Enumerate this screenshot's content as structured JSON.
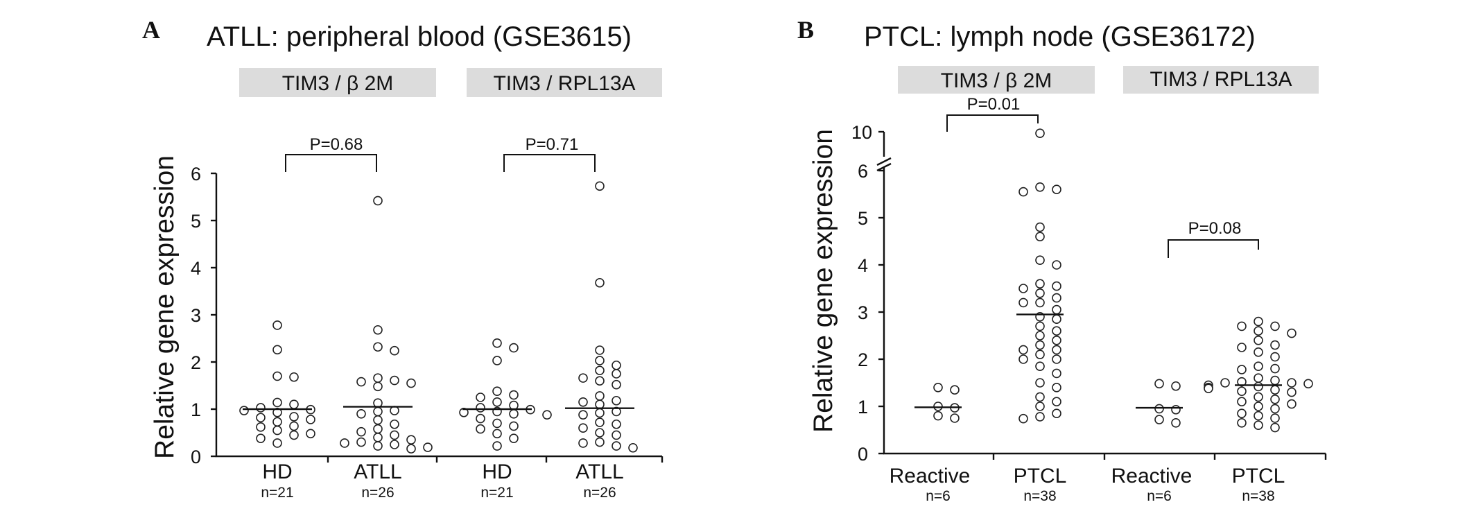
{
  "chart_data": [
    {
      "type": "scatter",
      "panel_label": "A",
      "title": "ATLL: peripheral blood (GSE3615)",
      "ylabel": "Relative gene expression",
      "ylim": [
        0,
        6
      ],
      "yticks": [
        "0",
        "1",
        "2",
        "3",
        "4",
        "5",
        "6"
      ],
      "grid": false,
      "groups": [
        {
          "header": "TIM3 / β 2M",
          "p_value": "P=0.68",
          "categories": [
            {
              "label": "HD",
              "n": "n=21",
              "mean": 1.0,
              "values": [
                2.78,
                2.26,
                1.7,
                1.68,
                1.14,
                1.1,
                1.03,
                0.99,
                0.97,
                0.93,
                0.84,
                0.82,
                0.78,
                0.73,
                0.64,
                0.62,
                0.55,
                0.48,
                0.45,
                0.38,
                0.28
              ]
            },
            {
              "label": "ATLL",
              "n": "n=26",
              "mean": 1.05,
              "values": [
                5.42,
                2.68,
                2.32,
                2.24,
                1.66,
                1.61,
                1.58,
                1.55,
                1.48,
                1.13,
                0.97,
                0.95,
                0.9,
                0.77,
                0.68,
                0.58,
                0.52,
                0.45,
                0.4,
                0.35,
                0.3,
                0.28,
                0.25,
                0.22,
                0.19,
                0.16
              ]
            }
          ]
        },
        {
          "header": "TIM3 / RPL13A",
          "p_value": "P=0.71",
          "categories": [
            {
              "label": "HD",
              "n": "n=21",
              "mean": 1.0,
              "values": [
                2.4,
                2.3,
                2.03,
                1.38,
                1.3,
                1.25,
                1.15,
                1.08,
                1.03,
                0.99,
                0.95,
                0.93,
                0.9,
                0.88,
                0.8,
                0.7,
                0.64,
                0.58,
                0.48,
                0.38,
                0.22
              ]
            },
            {
              "label": "ATLL",
              "n": "n=26",
              "mean": 1.02,
              "values": [
                5.73,
                3.68,
                2.25,
                2.03,
                1.93,
                1.82,
                1.75,
                1.66,
                1.6,
                1.52,
                1.28,
                1.18,
                1.15,
                1.1,
                0.95,
                0.92,
                0.88,
                0.72,
                0.68,
                0.6,
                0.5,
                0.45,
                0.3,
                0.28,
                0.22,
                0.18
              ]
            }
          ]
        }
      ]
    },
    {
      "type": "scatter",
      "panel_label": "B",
      "title": "PTCL: lymph node (GSE36172)",
      "ylabel": "Relative gene expression",
      "ylim": [
        0,
        10
      ],
      "yticks": [
        "0",
        "1",
        "2",
        "3",
        "4",
        "5",
        "6",
        "10"
      ],
      "axis_break": "between 6 and 10",
      "grid": false,
      "groups": [
        {
          "header": "TIM3 / β 2M",
          "p_value": "P=0.01",
          "categories": [
            {
              "label": "Reactive",
              "n": "n=6",
              "mean": 0.98,
              "values": [
                1.4,
                1.35,
                1.0,
                0.97,
                0.8,
                0.75
              ]
            },
            {
              "label": "PTCL",
              "n": "n=38",
              "mean": 2.95,
              "values": [
                9.8,
                5.65,
                5.6,
                5.55,
                4.8,
                4.6,
                4.1,
                4.0,
                3.6,
                3.55,
                3.5,
                3.4,
                3.3,
                3.2,
                3.2,
                3.05,
                2.9,
                2.85,
                2.7,
                2.6,
                2.5,
                2.4,
                2.3,
                2.2,
                2.2,
                2.1,
                2.0,
                2.0,
                1.85,
                1.7,
                1.5,
                1.4,
                1.2,
                1.1,
                1.0,
                0.85,
                0.78,
                0.74
              ]
            }
          ]
        },
        {
          "header": "TIM3 / RPL13A",
          "p_value": "P=0.08",
          "categories": [
            {
              "label": "Reactive",
              "n": "n=6",
              "mean": 0.97,
              "values": [
                1.48,
                1.43,
                0.95,
                0.93,
                0.72,
                0.65
              ]
            },
            {
              "label": "PTCL",
              "n": "n=38",
              "mean": 1.45,
              "values": [
                2.8,
                2.7,
                2.7,
                2.6,
                2.55,
                2.4,
                2.3,
                2.25,
                2.15,
                2.05,
                1.85,
                1.8,
                1.78,
                1.6,
                1.55,
                1.52,
                1.5,
                1.5,
                1.48,
                1.45,
                1.42,
                1.4,
                1.38,
                1.35,
                1.32,
                1.3,
                1.2,
                1.15,
                1.1,
                1.05,
                1.0,
                0.95,
                0.85,
                0.8,
                0.75,
                0.65,
                0.6,
                0.55
              ]
            }
          ]
        }
      ]
    }
  ]
}
